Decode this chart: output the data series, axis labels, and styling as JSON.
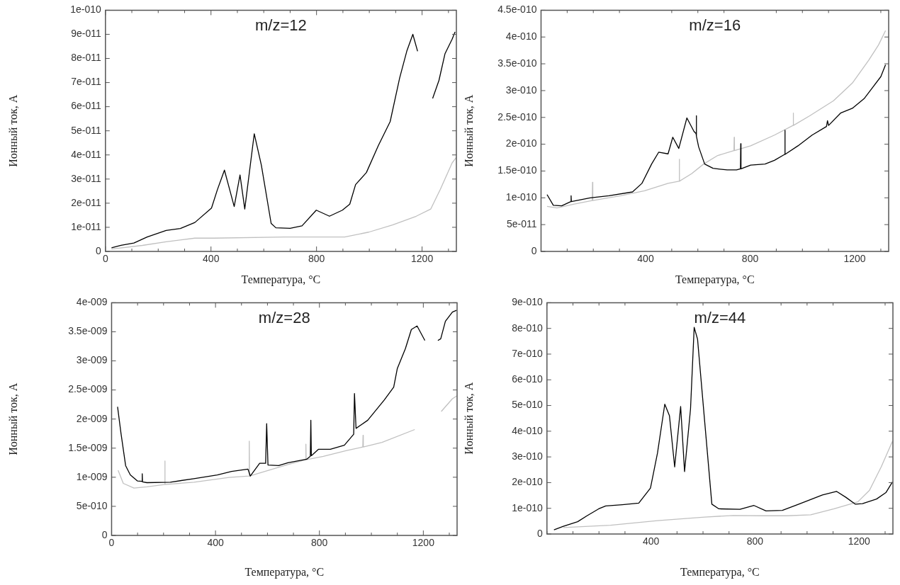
{
  "chart_data": [
    {
      "type": "line",
      "title": "m/z=12",
      "xlabel": "Температура, °C",
      "ylabel": "Ионный ток, А",
      "xlim": [
        0,
        1330
      ],
      "ylim": [
        0,
        1e-10
      ],
      "xticks": [
        0,
        {
          "value": 100,
          "label": null
        },
        {
          "value": 200,
          "label": null
        },
        {
          "value": 300,
          "label": null
        },
        400,
        {
          "value": 500,
          "label": null
        },
        {
          "value": 600,
          "label": null
        },
        {
          "value": 700,
          "label": null
        },
        800,
        {
          "value": 900,
          "label": null
        },
        {
          "value": 1000,
          "label": null
        },
        {
          "value": 1100,
          "label": null
        },
        1200,
        {
          "value": 1300,
          "label": null
        }
      ],
      "yticks": [
        {
          "value": 0,
          "label": "0"
        },
        {
          "value": 1e-11,
          "label": "1e-011"
        },
        {
          "value": 2e-11,
          "label": "2e-011"
        },
        {
          "value": 3e-11,
          "label": "3e-011"
        },
        {
          "value": 4e-11,
          "label": "4e-011"
        },
        {
          "value": 5e-11,
          "label": "5e-011"
        },
        {
          "value": 6e-11,
          "label": "6e-011"
        },
        {
          "value": 7e-11,
          "label": "7e-011"
        },
        {
          "value": 8e-11,
          "label": "8e-011"
        },
        {
          "value": 9e-11,
          "label": "9e-011"
        },
        {
          "value": 1e-10,
          "label": "1e-010"
        }
      ],
      "legend": false,
      "series": [
        {
          "color": "#000000",
          "x": [
            23,
            59,
            108,
            158,
            230,
            284,
            339,
            402,
            424,
            451,
            488,
            510,
            528,
            564,
            591,
            628,
            646,
            700,
            745,
            799,
            849,
            898,
            926,
            948,
            989,
            1034,
            1079,
            1115,
            1142,
            1165,
            1183,
            1210,
            1240,
            1264,
            1287,
            1314,
            1325
          ],
          "values": [
            1.5e-12,
            2.5e-12,
            3.5e-12,
            6e-12,
            8.7e-12,
            9.5e-12,
            1.2e-11,
            1.8e-11,
            2.55e-11,
            3.37e-11,
            1.86e-11,
            3.17e-11,
            1.76e-11,
            4.88e-11,
            3.57e-11,
            1.16e-11,
            9.8e-12,
            9.6e-12,
            1.06e-11,
            1.71e-11,
            1.46e-11,
            1.71e-11,
            1.96e-11,
            2.77e-11,
            3.27e-11,
            4.38e-11,
            5.38e-11,
            7.19e-11,
            8.3e-11,
            9e-11,
            8.3e-11,
            null,
            6.34e-11,
            7.09e-11,
            8.2e-11,
            8.8e-11,
            9.1e-11
          ]
        },
        {
          "color": "#c0c0c0",
          "x": [
            23,
            140,
            230,
            339,
            411,
            682,
            907,
            998,
            1088,
            1178,
            1233,
            1269,
            1314,
            1330
          ],
          "values": [
            1e-12,
            2.5e-12,
            4e-12,
            5.5e-12,
            5.5e-12,
            6e-12,
            6e-12,
            8e-12,
            1.1e-11,
            1.46e-11,
            1.76e-11,
            2.57e-11,
            3.67e-11,
            3.9e-11
          ]
        }
      ]
    },
    {
      "type": "line",
      "title": "m/z=16",
      "xlabel": "Температура, °C",
      "ylabel": "Ионный ток, А",
      "xlim": [
        0,
        1330
      ],
      "ylim": [
        0,
        4.5e-10
      ],
      "xticks": [
        {
          "value": 0,
          "label": null
        },
        {
          "value": 100,
          "label": null
        },
        {
          "value": 200,
          "label": null
        },
        {
          "value": 300,
          "label": null
        },
        400,
        {
          "value": 500,
          "label": null
        },
        {
          "value": 600,
          "label": null
        },
        {
          "value": 700,
          "label": null
        },
        800,
        {
          "value": 900,
          "label": null
        },
        {
          "value": 1000,
          "label": null
        },
        {
          "value": 1100,
          "label": null
        },
        1200,
        {
          "value": 1300,
          "label": null
        }
      ],
      "yticks": [
        {
          "value": 0,
          "label": "0"
        },
        {
          "value": 5e-11,
          "label": "5e-011"
        },
        {
          "value": 1e-10,
          "label": "1e-010"
        },
        {
          "value": 1.5e-10,
          "label": "1.5e-010"
        },
        {
          "value": 2e-10,
          "label": "2e-010"
        },
        {
          "value": 2.5e-10,
          "label": "2.5e-010"
        },
        {
          "value": 3e-10,
          "label": "3e-010"
        },
        {
          "value": 3.5e-10,
          "label": "3.5e-010"
        },
        {
          "value": 4e-10,
          "label": "4e-010"
        },
        {
          "value": 4.5e-10,
          "label": "4.5e-010"
        }
      ],
      "legend": false,
      "series": [
        {
          "color": "#000000",
          "x": [
            23,
            47,
            79,
            114,
            115,
            116,
            188,
            260,
            350,
            386,
            423,
            450,
            486,
            504,
            527,
            558,
            585,
            593,
            594,
            595,
            603,
            626,
            658,
            712,
            748,
            763,
            764,
            765,
            802,
            857,
            893,
            932,
            933,
            934,
            983,
            1037,
            1092,
            1096,
            1100,
            1146,
            1191,
            1236,
            1272,
            1300,
            1318
          ],
          "values": [
            1.06e-10,
            8.6e-11,
            8.5e-11,
            9.3e-11,
            1.04e-10,
            9.3e-11,
            1e-10,
            1.04e-10,
            1.11e-10,
            1.27e-10,
            1.63e-10,
            1.85e-10,
            1.82e-10,
            2.13e-10,
            1.92e-10,
            2.49e-10,
            2.24e-10,
            2.2e-10,
            2.53e-10,
            2.15e-10,
            1.95e-10,
            1.63e-10,
            1.55e-10,
            1.52e-10,
            1.52e-10,
            1.54e-10,
            2.01e-10,
            1.54e-10,
            1.61e-10,
            1.63e-10,
            1.7e-10,
            1.81e-10,
            2.26e-10,
            1.81e-10,
            1.97e-10,
            2.17e-10,
            2.33e-10,
            2.44e-10,
            2.35e-10,
            2.58e-10,
            2.67e-10,
            2.85e-10,
            3.08e-10,
            3.26e-10,
            3.48e-10
          ]
        },
        {
          "color": "#c0c0c0",
          "x": [
            23,
            61,
            124,
            196,
            197,
            198,
            305,
            396,
            486,
            528,
            529,
            530,
            576,
            622,
            676,
            738,
            739,
            740,
            802,
            893,
            964,
            965,
            966,
            1028,
            1119,
            1191,
            1254,
            1291,
            1318
          ],
          "values": [
            8.4e-11,
            8.1e-11,
            8.8e-11,
            9.5e-11,
            1.29e-10,
            9.5e-11,
            1.04e-10,
            1.13e-10,
            1.27e-10,
            1.31e-10,
            1.72e-10,
            1.31e-10,
            1.45e-10,
            1.63e-10,
            1.79e-10,
            1.88e-10,
            2.13e-10,
            1.88e-10,
            1.97e-10,
            2.17e-10,
            2.35e-10,
            2.58e-10,
            2.35e-10,
            2.53e-10,
            2.81e-10,
            3.14e-10,
            3.57e-10,
            3.85e-10,
            4.12e-10
          ]
        }
      ]
    },
    {
      "type": "line",
      "title": "m/z=28",
      "xlabel": "Температура, °C",
      "ylabel": "Ионный ток, А",
      "xlim": [
        0,
        1330
      ],
      "ylim": [
        0,
        4e-09
      ],
      "xticks": [
        0,
        {
          "value": 100,
          "label": null
        },
        {
          "value": 200,
          "label": null
        },
        {
          "value": 300,
          "label": null
        },
        400,
        {
          "value": 500,
          "label": null
        },
        {
          "value": 600,
          "label": null
        },
        {
          "value": 700,
          "label": null
        },
        800,
        {
          "value": 900,
          "label": null
        },
        {
          "value": 1000,
          "label": null
        },
        {
          "value": 1100,
          "label": null
        },
        1200,
        {
          "value": 1300,
          "label": null
        }
      ],
      "yticks": [
        {
          "value": 0,
          "label": "0"
        },
        {
          "value": 5e-10,
          "label": "5e-010"
        },
        {
          "value": 1e-09,
          "label": "1e-009"
        },
        {
          "value": 1.5e-09,
          "label": "1.5e-009"
        },
        {
          "value": 2e-09,
          "label": "2e-009"
        },
        {
          "value": 2.5e-09,
          "label": "2.5e-009"
        },
        {
          "value": 3e-09,
          "label": "3e-009"
        },
        {
          "value": 3.5e-09,
          "label": "3.5e-009"
        },
        {
          "value": 4e-09,
          "label": "4e-009"
        }
      ],
      "legend": false,
      "series": [
        {
          "color": "#000000",
          "x": [
            23,
            36,
            54,
            72,
            100,
            117,
            118,
            119,
            136,
            226,
            317,
            407,
            462,
            525,
            534,
            570,
            593,
            597,
            602,
            643,
            679,
            751,
            765,
            767,
            769,
            796,
            842,
            896,
            932,
            935,
            941,
            986,
            1050,
            1086,
            1100,
            1131,
            1154,
            1176,
            1206,
            1230,
            1256,
            1267,
            1285,
            1312,
            1328
          ],
          "values": [
            2.21e-09,
            1.76e-09,
            1.2e-09,
            1.04e-09,
            9.35e-10,
            9.3e-10,
            1.06e-09,
            9.2e-10,
            9.07e-10,
            9.15e-10,
            9.76e-10,
            1.04e-09,
            1.1e-09,
            1.14e-09,
            1.02e-09,
            1.24e-09,
            1.24e-09,
            1.92e-09,
            1.21e-09,
            1.2e-09,
            1.25e-09,
            1.31e-09,
            1.36e-09,
            1.98e-09,
            1.37e-09,
            1.48e-09,
            1.48e-09,
            1.55e-09,
            1.74e-09,
            2.44e-09,
            1.84e-09,
            1.98e-09,
            2.33e-09,
            2.55e-09,
            2.87e-09,
            3.21e-09,
            3.54e-09,
            3.6e-09,
            3.35e-09,
            null,
            3.35e-09,
            3.38e-09,
            3.68e-09,
            3.84e-09,
            3.87e-09
          ]
        },
        {
          "color": "#c0c0c0",
          "x": [
            25,
            45,
            86,
            136,
            204,
            205,
            206,
            317,
            452,
            529,
            530,
            531,
            606,
            679,
            747,
            748,
            749,
            815,
            905,
            967,
            968,
            969,
            1041,
            1167,
            1220,
            1269,
            1312,
            1330
          ],
          "values": [
            1.12e-09,
            8.95e-10,
            8.15e-10,
            8.35e-10,
            8.75e-10,
            1.28e-09,
            8.75e-10,
            9.15e-10,
            9.96e-10,
            1.02e-09,
            1.62e-09,
            1.02e-09,
            1.12e-09,
            1.22e-09,
            1.3e-09,
            1.57e-09,
            1.3e-09,
            1.36e-09,
            1.46e-09,
            1.52e-09,
            1.72e-09,
            1.52e-09,
            1.6e-09,
            1.82e-09,
            null,
            2.13e-09,
            2.35e-09,
            2.4e-09
          ]
        }
      ]
    },
    {
      "type": "line",
      "title": "m/z=44",
      "xlabel": "Температура, °C",
      "ylabel": "Ионный ток, А",
      "xlim": [
        0,
        1330
      ],
      "ylim": [
        0,
        9e-10
      ],
      "xticks": [
        {
          "value": 0,
          "label": null
        },
        {
          "value": 100,
          "label": null
        },
        {
          "value": 200,
          "label": null
        },
        {
          "value": 300,
          "label": null
        },
        400,
        {
          "value": 500,
          "label": null
        },
        {
          "value": 600,
          "label": null
        },
        {
          "value": 700,
          "label": null
        },
        800,
        {
          "value": 900,
          "label": null
        },
        {
          "value": 1000,
          "label": null
        },
        {
          "value": 1100,
          "label": null
        },
        1200,
        {
          "value": 1300,
          "label": null
        }
      ],
      "yticks": [
        {
          "value": 0,
          "label": "0"
        },
        {
          "value": 1e-10,
          "label": "1e-010"
        },
        {
          "value": 2e-10,
          "label": "2e-010"
        },
        {
          "value": 3e-10,
          "label": "3e-010"
        },
        {
          "value": 4e-10,
          "label": "4e-010"
        },
        {
          "value": 5e-10,
          "label": "5e-010"
        },
        {
          "value": 6e-10,
          "label": "6e-010"
        },
        {
          "value": 7e-10,
          "label": "7e-010"
        },
        {
          "value": 8e-10,
          "label": "8e-010"
        },
        {
          "value": 9e-10,
          "label": "9e-010"
        }
      ],
      "legend": false,
      "series": [
        {
          "color": "#000000",
          "x": [
            27,
            63,
            118,
            154,
            199,
            226,
            290,
            353,
            398,
            425,
            453,
            471,
            491,
            514,
            529,
            552,
            566,
            579,
            606,
            634,
            661,
            742,
            796,
            842,
            905,
            968,
            1059,
            1113,
            1149,
            1186,
            1213,
            1267,
            1303,
            1328
          ],
          "values": [
            1.6e-11,
            3e-11,
            4.8e-11,
            7.1e-11,
            9.8e-11,
            1.09e-10,
            1.14e-10,
            1.2e-10,
            1.79e-10,
            3.15e-10,
            5.05e-10,
            4.6e-10,
            2.61e-10,
            4.96e-10,
            2.43e-10,
            4.87e-10,
            8.04e-10,
            7.58e-10,
            4.42e-10,
            1.16e-10,
            9.8e-11,
            9.6e-11,
            1.11e-10,
            9e-11,
            9.2e-11,
            1.16e-10,
            1.52e-10,
            1.66e-10,
            1.43e-10,
            1.16e-10,
            1.18e-10,
            1.36e-10,
            1.61e-10,
            2.02e-10
          ]
        },
        {
          "color": "#c0c0c0",
          "x": [
            63,
            244,
            425,
            606,
            715,
            833,
            923,
            1014,
            1104,
            1195,
            1240,
            1285,
            1328
          ],
          "values": [
            2.5e-11,
            3.4e-11,
            5.2e-11,
            6.6e-11,
            7.2e-11,
            7.1e-11,
            7.1e-11,
            7.5e-11,
            9.8e-11,
            1.25e-10,
            1.7e-10,
            2.61e-10,
            3.6e-10
          ]
        }
      ]
    }
  ]
}
